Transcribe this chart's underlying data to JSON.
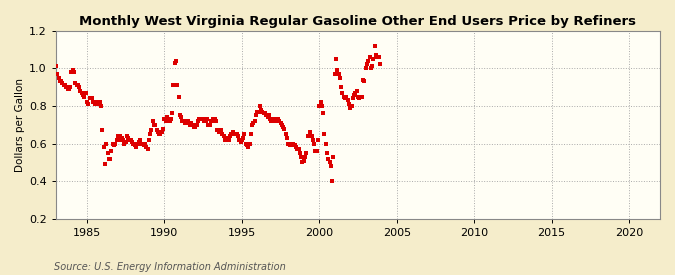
{
  "title": "Monthly West Virginia Regular Gasoline Other End Users Price by Refiners",
  "ylabel": "Dollars per Gallon",
  "source": "Source: U.S. Energy Information Administration",
  "figure_bg_color": "#f5edcb",
  "plot_bg_color": "#fffef5",
  "marker_color": "#dd0000",
  "marker_size": 5,
  "xlim": [
    1983.0,
    2022.0
  ],
  "ylim": [
    0.2,
    1.2
  ],
  "xticks": [
    1985,
    1990,
    1995,
    2000,
    2005,
    2010,
    2015,
    2020
  ],
  "yticks": [
    0.2,
    0.4,
    0.6,
    0.8,
    1.0,
    1.2
  ],
  "data": [
    [
      1983.0,
      1.01
    ],
    [
      1983.083,
      0.97
    ],
    [
      1983.167,
      0.95
    ],
    [
      1983.25,
      0.93
    ],
    [
      1983.333,
      0.93
    ],
    [
      1983.417,
      0.92
    ],
    [
      1983.5,
      0.91
    ],
    [
      1983.583,
      0.91
    ],
    [
      1983.667,
      0.9
    ],
    [
      1983.75,
      0.89
    ],
    [
      1983.833,
      0.89
    ],
    [
      1983.917,
      0.9
    ],
    [
      1984.0,
      0.98
    ],
    [
      1984.083,
      0.99
    ],
    [
      1984.167,
      0.98
    ],
    [
      1984.25,
      0.92
    ],
    [
      1984.333,
      0.91
    ],
    [
      1984.417,
      0.91
    ],
    [
      1984.5,
      0.9
    ],
    [
      1984.583,
      0.88
    ],
    [
      1984.667,
      0.87
    ],
    [
      1984.75,
      0.86
    ],
    [
      1984.833,
      0.85
    ],
    [
      1984.917,
      0.87
    ],
    [
      1985.0,
      0.82
    ],
    [
      1985.083,
      0.81
    ],
    [
      1985.167,
      0.84
    ],
    [
      1985.25,
      0.84
    ],
    [
      1985.333,
      0.84
    ],
    [
      1985.417,
      0.82
    ],
    [
      1985.5,
      0.81
    ],
    [
      1985.583,
      0.82
    ],
    [
      1985.667,
      0.81
    ],
    [
      1985.75,
      0.82
    ],
    [
      1985.833,
      0.82
    ],
    [
      1985.917,
      0.8
    ],
    [
      1986.0,
      0.67
    ],
    [
      1986.083,
      0.58
    ],
    [
      1986.167,
      0.49
    ],
    [
      1986.25,
      0.6
    ],
    [
      1986.333,
      0.55
    ],
    [
      1986.417,
      0.52
    ],
    [
      1986.5,
      0.52
    ],
    [
      1986.583,
      0.56
    ],
    [
      1986.667,
      0.6
    ],
    [
      1986.75,
      0.59
    ],
    [
      1986.833,
      0.6
    ],
    [
      1986.917,
      0.62
    ],
    [
      1987.0,
      0.64
    ],
    [
      1987.083,
      0.62
    ],
    [
      1987.167,
      0.64
    ],
    [
      1987.25,
      0.63
    ],
    [
      1987.333,
      0.62
    ],
    [
      1987.417,
      0.6
    ],
    [
      1987.5,
      0.61
    ],
    [
      1987.583,
      0.64
    ],
    [
      1987.667,
      0.63
    ],
    [
      1987.75,
      0.62
    ],
    [
      1987.833,
      0.62
    ],
    [
      1987.917,
      0.61
    ],
    [
      1988.0,
      0.6
    ],
    [
      1988.083,
      0.59
    ],
    [
      1988.167,
      0.58
    ],
    [
      1988.25,
      0.6
    ],
    [
      1988.333,
      0.61
    ],
    [
      1988.417,
      0.62
    ],
    [
      1988.5,
      0.6
    ],
    [
      1988.583,
      0.6
    ],
    [
      1988.667,
      0.59
    ],
    [
      1988.75,
      0.6
    ],
    [
      1988.833,
      0.58
    ],
    [
      1988.917,
      0.57
    ],
    [
      1989.0,
      0.62
    ],
    [
      1989.083,
      0.65
    ],
    [
      1989.167,
      0.67
    ],
    [
      1989.25,
      0.72
    ],
    [
      1989.333,
      0.7
    ],
    [
      1989.417,
      0.7
    ],
    [
      1989.5,
      0.67
    ],
    [
      1989.583,
      0.66
    ],
    [
      1989.667,
      0.65
    ],
    [
      1989.75,
      0.65
    ],
    [
      1989.833,
      0.66
    ],
    [
      1989.917,
      0.68
    ],
    [
      1990.0,
      0.73
    ],
    [
      1990.083,
      0.72
    ],
    [
      1990.167,
      0.74
    ],
    [
      1990.25,
      0.73
    ],
    [
      1990.333,
      0.72
    ],
    [
      1990.417,
      0.73
    ],
    [
      1990.5,
      0.76
    ],
    [
      1990.583,
      0.91
    ],
    [
      1990.667,
      1.03
    ],
    [
      1990.75,
      1.04
    ],
    [
      1990.833,
      0.91
    ],
    [
      1990.917,
      0.85
    ],
    [
      1991.0,
      0.75
    ],
    [
      1991.083,
      0.74
    ],
    [
      1991.167,
      0.72
    ],
    [
      1991.25,
      0.72
    ],
    [
      1991.333,
      0.71
    ],
    [
      1991.417,
      0.72
    ],
    [
      1991.5,
      0.72
    ],
    [
      1991.583,
      0.71
    ],
    [
      1991.667,
      0.7
    ],
    [
      1991.75,
      0.71
    ],
    [
      1991.833,
      0.7
    ],
    [
      1991.917,
      0.69
    ],
    [
      1992.0,
      0.69
    ],
    [
      1992.083,
      0.7
    ],
    [
      1992.167,
      0.72
    ],
    [
      1992.25,
      0.73
    ],
    [
      1992.333,
      0.73
    ],
    [
      1992.417,
      0.73
    ],
    [
      1992.5,
      0.73
    ],
    [
      1992.583,
      0.72
    ],
    [
      1992.667,
      0.72
    ],
    [
      1992.75,
      0.73
    ],
    [
      1992.833,
      0.7
    ],
    [
      1992.917,
      0.7
    ],
    [
      1993.0,
      0.72
    ],
    [
      1993.083,
      0.72
    ],
    [
      1993.167,
      0.73
    ],
    [
      1993.25,
      0.73
    ],
    [
      1993.333,
      0.72
    ],
    [
      1993.417,
      0.67
    ],
    [
      1993.5,
      0.66
    ],
    [
      1993.583,
      0.67
    ],
    [
      1993.667,
      0.67
    ],
    [
      1993.75,
      0.65
    ],
    [
      1993.833,
      0.64
    ],
    [
      1993.917,
      0.62
    ],
    [
      1994.0,
      0.63
    ],
    [
      1994.083,
      0.62
    ],
    [
      1994.167,
      0.62
    ],
    [
      1994.25,
      0.64
    ],
    [
      1994.333,
      0.65
    ],
    [
      1994.417,
      0.66
    ],
    [
      1994.5,
      0.65
    ],
    [
      1994.583,
      0.65
    ],
    [
      1994.667,
      0.65
    ],
    [
      1994.75,
      0.64
    ],
    [
      1994.833,
      0.62
    ],
    [
      1994.917,
      0.61
    ],
    [
      1995.0,
      0.62
    ],
    [
      1995.083,
      0.63
    ],
    [
      1995.167,
      0.65
    ],
    [
      1995.25,
      0.6
    ],
    [
      1995.333,
      0.59
    ],
    [
      1995.417,
      0.58
    ],
    [
      1995.5,
      0.6
    ],
    [
      1995.583,
      0.65
    ],
    [
      1995.667,
      0.7
    ],
    [
      1995.75,
      0.71
    ],
    [
      1995.833,
      0.72
    ],
    [
      1995.917,
      0.75
    ],
    [
      1996.0,
      0.77
    ],
    [
      1996.083,
      0.77
    ],
    [
      1996.167,
      0.8
    ],
    [
      1996.25,
      0.78
    ],
    [
      1996.333,
      0.77
    ],
    [
      1996.417,
      0.76
    ],
    [
      1996.5,
      0.76
    ],
    [
      1996.583,
      0.75
    ],
    [
      1996.667,
      0.74
    ],
    [
      1996.75,
      0.75
    ],
    [
      1996.833,
      0.73
    ],
    [
      1996.917,
      0.72
    ],
    [
      1997.0,
      0.73
    ],
    [
      1997.083,
      0.72
    ],
    [
      1997.167,
      0.72
    ],
    [
      1997.25,
      0.73
    ],
    [
      1997.333,
      0.73
    ],
    [
      1997.417,
      0.72
    ],
    [
      1997.5,
      0.71
    ],
    [
      1997.583,
      0.7
    ],
    [
      1997.667,
      0.69
    ],
    [
      1997.75,
      0.68
    ],
    [
      1997.833,
      0.65
    ],
    [
      1997.917,
      0.63
    ],
    [
      1998.0,
      0.6
    ],
    [
      1998.083,
      0.59
    ],
    [
      1998.167,
      0.59
    ],
    [
      1998.25,
      0.6
    ],
    [
      1998.333,
      0.6
    ],
    [
      1998.417,
      0.59
    ],
    [
      1998.5,
      0.58
    ],
    [
      1998.583,
      0.57
    ],
    [
      1998.667,
      0.57
    ],
    [
      1998.75,
      0.55
    ],
    [
      1998.833,
      0.53
    ],
    [
      1998.917,
      0.5
    ],
    [
      1999.0,
      0.51
    ],
    [
      1999.083,
      0.53
    ],
    [
      1999.167,
      0.55
    ],
    [
      1999.25,
      0.64
    ],
    [
      1999.333,
      0.64
    ],
    [
      1999.417,
      0.66
    ],
    [
      1999.5,
      0.64
    ],
    [
      1999.583,
      0.62
    ],
    [
      1999.667,
      0.6
    ],
    [
      1999.75,
      0.56
    ],
    [
      1999.833,
      0.56
    ],
    [
      1999.917,
      0.62
    ],
    [
      2000.0,
      0.8
    ],
    [
      2000.083,
      0.82
    ],
    [
      2000.167,
      0.8
    ],
    [
      2000.25,
      0.76
    ],
    [
      2000.333,
      0.65
    ],
    [
      2000.417,
      0.6
    ],
    [
      2000.5,
      0.55
    ],
    [
      2000.583,
      0.52
    ],
    [
      2000.667,
      0.5
    ],
    [
      2000.75,
      0.48
    ],
    [
      2000.833,
      0.4
    ],
    [
      2000.917,
      0.53
    ],
    [
      2001.0,
      0.97
    ],
    [
      2001.083,
      1.05
    ],
    [
      2001.167,
      0.99
    ],
    [
      2001.25,
      0.97
    ],
    [
      2001.333,
      0.95
    ],
    [
      2001.417,
      0.9
    ],
    [
      2001.5,
      0.87
    ],
    [
      2001.583,
      0.85
    ],
    [
      2001.667,
      0.84
    ],
    [
      2001.75,
      0.85
    ],
    [
      2001.833,
      0.83
    ],
    [
      2001.917,
      0.81
    ],
    [
      2002.0,
      0.79
    ],
    [
      2002.083,
      0.8
    ],
    [
      2002.167,
      0.84
    ],
    [
      2002.25,
      0.86
    ],
    [
      2002.333,
      0.87
    ],
    [
      2002.417,
      0.88
    ],
    [
      2002.5,
      0.85
    ],
    [
      2002.583,
      0.84
    ],
    [
      2002.667,
      0.85
    ],
    [
      2002.75,
      0.85
    ],
    [
      2002.833,
      0.94
    ],
    [
      2002.917,
      0.93
    ],
    [
      2003.0,
      1.0
    ],
    [
      2003.083,
      1.02
    ],
    [
      2003.167,
      1.04
    ],
    [
      2003.25,
      1.06
    ],
    [
      2003.333,
      1.0
    ],
    [
      2003.417,
      1.01
    ],
    [
      2003.5,
      1.05
    ],
    [
      2003.583,
      1.12
    ],
    [
      2003.667,
      1.07
    ],
    [
      2003.75,
      1.06
    ],
    [
      2003.833,
      1.06
    ],
    [
      2003.917,
      1.02
    ]
  ]
}
